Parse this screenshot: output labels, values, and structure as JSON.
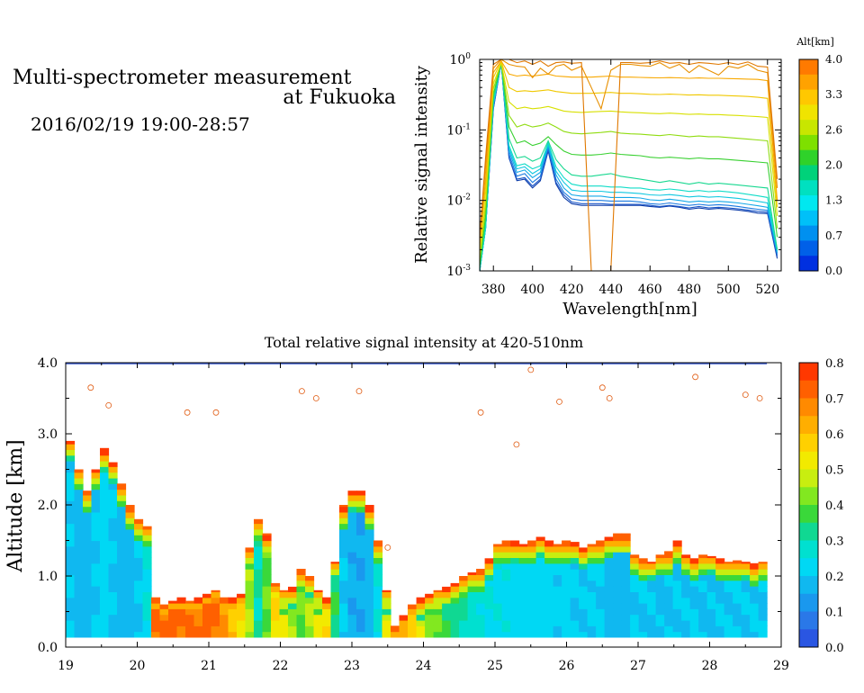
{
  "header": {
    "title_line1": "Multi-spectrometer measurement",
    "title_line2": "at Fukuoka",
    "datetime": "2016/02/19 19:00-28:57"
  },
  "chart_data": [
    {
      "type": "line",
      "xlabel": "Wavelength[nm]",
      "ylabel": "Relative signal intensity",
      "yscale": "log",
      "xlim": [
        373,
        527
      ],
      "ylim": [
        0.001,
        1
      ],
      "x_ticks": [
        380,
        400,
        420,
        440,
        460,
        480,
        500,
        520
      ],
      "y_ticks": [
        {
          "base": "10",
          "exp": "-3",
          "v": 0.001
        },
        {
          "base": "10",
          "exp": "-2",
          "v": 0.01
        },
        {
          "base": "10",
          "exp": "-1",
          "v": 0.1
        },
        {
          "base": "10",
          "exp": "0",
          "v": 1
        }
      ],
      "colorbar": {
        "title": "Alt[km]",
        "ticks": [
          "4.0",
          "3.3",
          "2.6",
          "2.0",
          "1.3",
          "0.7",
          "0.0"
        ],
        "colors": [
          "#ff7a00",
          "#ffa200",
          "#ffc800",
          "#f0e400",
          "#c8e600",
          "#7ee000",
          "#2fd22a",
          "#00d27a",
          "#00e0c0",
          "#00e8f0",
          "#00c0f8",
          "#0090f0",
          "#0060e8",
          "#0030e0"
        ]
      },
      "x": [
        373,
        376,
        380,
        384,
        388,
        392,
        396,
        400,
        404,
        408,
        412,
        416,
        420,
        425,
        430,
        435,
        440,
        445,
        450,
        455,
        460,
        465,
        470,
        475,
        480,
        485,
        490,
        495,
        500,
        505,
        510,
        515,
        520,
        525
      ],
      "series": [
        {
          "color": "#0a3aa8",
          "values": [
            0.0008,
            0.004,
            0.2,
            0.9,
            0.04,
            0.019,
            0.02,
            0.015,
            0.019,
            0.05,
            0.017,
            0.011,
            0.009,
            0.0085,
            0.0085,
            0.0085,
            0.0085,
            0.0085,
            0.0085,
            0.0085,
            0.0082,
            0.008,
            0.0083,
            0.008,
            0.0075,
            0.0078,
            0.0075,
            0.0077,
            0.0075,
            0.0073,
            0.007,
            0.0066,
            0.0065,
            0.0015
          ]
        },
        {
          "color": "#1a56c8",
          "values": [
            0.0008,
            0.004,
            0.2,
            0.9,
            0.04,
            0.02,
            0.021,
            0.016,
            0.02,
            0.052,
            0.018,
            0.012,
            0.0095,
            0.009,
            0.009,
            0.009,
            0.0088,
            0.0088,
            0.0088,
            0.0088,
            0.0085,
            0.0082,
            0.0085,
            0.0082,
            0.0078,
            0.0082,
            0.0078,
            0.008,
            0.0078,
            0.0076,
            0.0073,
            0.007,
            0.0068,
            0.0016
          ]
        },
        {
          "color": "#1a7ae0",
          "values": [
            0.0009,
            0.004,
            0.22,
            0.9,
            0.045,
            0.022,
            0.024,
            0.018,
            0.022,
            0.056,
            0.02,
            0.013,
            0.0105,
            0.01,
            0.01,
            0.01,
            0.0098,
            0.0098,
            0.0098,
            0.0095,
            0.009,
            0.0088,
            0.0092,
            0.0088,
            0.0085,
            0.0088,
            0.0085,
            0.0087,
            0.0085,
            0.0082,
            0.0078,
            0.0075,
            0.0072,
            0.0017
          ]
        },
        {
          "color": "#14a8e8",
          "values": [
            0.0009,
            0.004,
            0.22,
            0.9,
            0.05,
            0.025,
            0.027,
            0.021,
            0.025,
            0.06,
            0.023,
            0.015,
            0.012,
            0.0115,
            0.0115,
            0.0115,
            0.011,
            0.011,
            0.011,
            0.0108,
            0.0102,
            0.01,
            0.0104,
            0.01,
            0.0095,
            0.0098,
            0.0095,
            0.0097,
            0.0095,
            0.0092,
            0.0088,
            0.0084,
            0.008,
            0.0018
          ]
        },
        {
          "color": "#10c8e0",
          "values": [
            0.001,
            0.004,
            0.24,
            0.9,
            0.055,
            0.028,
            0.03,
            0.024,
            0.028,
            0.063,
            0.026,
            0.018,
            0.014,
            0.0135,
            0.0135,
            0.0135,
            0.013,
            0.013,
            0.0128,
            0.0125,
            0.012,
            0.0118,
            0.0121,
            0.0117,
            0.0112,
            0.0115,
            0.0111,
            0.0113,
            0.011,
            0.0107,
            0.0102,
            0.0097,
            0.0092,
            0.0019
          ]
        },
        {
          "color": "#10dcc8",
          "values": [
            0.001,
            0.004,
            0.25,
            0.9,
            0.06,
            0.031,
            0.033,
            0.028,
            0.031,
            0.066,
            0.03,
            0.021,
            0.017,
            0.016,
            0.016,
            0.016,
            0.0155,
            0.0155,
            0.015,
            0.015,
            0.0142,
            0.014,
            0.0145,
            0.014,
            0.0134,
            0.0138,
            0.0133,
            0.0136,
            0.0132,
            0.0128,
            0.0122,
            0.0116,
            0.011,
            0.002
          ]
        },
        {
          "color": "#18d890",
          "values": [
            0.0011,
            0.005,
            0.28,
            0.9,
            0.075,
            0.04,
            0.042,
            0.036,
            0.04,
            0.07,
            0.038,
            0.028,
            0.023,
            0.022,
            0.022,
            0.023,
            0.024,
            0.022,
            0.021,
            0.02,
            0.019,
            0.018,
            0.019,
            0.018,
            0.017,
            0.018,
            0.017,
            0.0175,
            0.017,
            0.0165,
            0.016,
            0.0155,
            0.015,
            0.002
          ]
        },
        {
          "color": "#38d030",
          "values": [
            0.0012,
            0.006,
            0.32,
            0.9,
            0.11,
            0.065,
            0.07,
            0.06,
            0.065,
            0.08,
            0.062,
            0.05,
            0.045,
            0.044,
            0.044,
            0.045,
            0.047,
            0.045,
            0.044,
            0.043,
            0.041,
            0.04,
            0.041,
            0.04,
            0.039,
            0.04,
            0.039,
            0.039,
            0.038,
            0.037,
            0.036,
            0.035,
            0.034,
            0.003
          ]
        },
        {
          "color": "#90dc10",
          "values": [
            0.0014,
            0.008,
            0.38,
            0.9,
            0.16,
            0.11,
            0.12,
            0.11,
            0.115,
            0.125,
            0.11,
            0.095,
            0.09,
            0.088,
            0.09,
            0.092,
            0.095,
            0.09,
            0.088,
            0.087,
            0.085,
            0.083,
            0.086,
            0.083,
            0.08,
            0.082,
            0.08,
            0.08,
            0.078,
            0.076,
            0.074,
            0.072,
            0.07,
            0.004
          ]
        },
        {
          "color": "#d8e000",
          "values": [
            0.0016,
            0.01,
            0.45,
            0.9,
            0.25,
            0.2,
            0.21,
            0.2,
            0.205,
            0.215,
            0.2,
            0.185,
            0.18,
            0.177,
            0.18,
            0.183,
            0.185,
            0.18,
            0.177,
            0.175,
            0.172,
            0.17,
            0.173,
            0.17,
            0.166,
            0.168,
            0.165,
            0.165,
            0.162,
            0.16,
            0.157,
            0.154,
            0.15,
            0.006
          ]
        },
        {
          "color": "#f0c800",
          "values": [
            0.002,
            0.015,
            0.55,
            0.95,
            0.4,
            0.35,
            0.36,
            0.35,
            0.36,
            0.37,
            0.35,
            0.34,
            0.33,
            0.33,
            0.33,
            0.335,
            0.34,
            0.33,
            0.33,
            0.325,
            0.32,
            0.318,
            0.322,
            0.318,
            0.312,
            0.315,
            0.31,
            0.31,
            0.306,
            0.302,
            0.298,
            0.29,
            0.28,
            0.008
          ]
        },
        {
          "color": "#f8a800",
          "values": [
            0.0025,
            0.02,
            0.65,
            0.95,
            0.62,
            0.58,
            0.6,
            0.58,
            0.6,
            0.62,
            0.58,
            0.57,
            0.56,
            0.56,
            0.56,
            0.57,
            0.58,
            0.56,
            0.56,
            0.555,
            0.55,
            0.548,
            0.552,
            0.548,
            0.54,
            0.545,
            0.54,
            0.54,
            0.535,
            0.53,
            0.525,
            0.52,
            0.5,
            0.01
          ]
        },
        {
          "color": "#e89000",
          "values": [
            0.003,
            0.03,
            0.75,
            1.0,
            0.85,
            0.8,
            0.78,
            0.55,
            0.75,
            0.62,
            0.8,
            0.85,
            0.7,
            0.8,
            0.4,
            0.2,
            0.7,
            0.85,
            0.85,
            0.82,
            0.8,
            0.9,
            0.75,
            0.85,
            0.65,
            0.82,
            0.7,
            0.6,
            0.8,
            0.75,
            0.85,
            0.7,
            0.65,
            0.015
          ]
        },
        {
          "color": "#e07800",
          "values": [
            0.003,
            0.04,
            0.85,
            1.0,
            1.0,
            0.9,
            0.95,
            0.85,
            0.95,
            0.8,
            0.9,
            0.92,
            0.88,
            0.9,
            0.0009,
            0.0009,
            0.0009,
            0.9,
            0.9,
            0.88,
            0.9,
            0.95,
            0.88,
            0.9,
            0.85,
            0.9,
            0.88,
            0.85,
            0.9,
            0.85,
            0.92,
            0.8,
            0.78,
            0.02
          ]
        }
      ]
    },
    {
      "type": "heatmap",
      "title": "Total relative signal intensity at 420-510nm",
      "ylabel": "Altitude [km]",
      "xlim": [
        19,
        29
      ],
      "ylim": [
        0,
        4
      ],
      "x_ticks": [
        "19",
        "20",
        "21",
        "22",
        "23",
        "24",
        "25",
        "26",
        "27",
        "28",
        "29"
      ],
      "y_ticks": [
        "0.0",
        "1.0",
        "2.0",
        "3.0",
        "4.0"
      ],
      "colorbar": {
        "ticks": [
          "0.8",
          "0.7",
          "0.6",
          "0.5",
          "0.4",
          "0.3",
          "0.2",
          "0.1",
          "0.0"
        ],
        "colors": [
          "#ff3800",
          "#ff6000",
          "#ff8a00",
          "#ffae00",
          "#ffd000",
          "#f2ea00",
          "#c8ee10",
          "#82e820",
          "#3ad83a",
          "#10d892",
          "#00e0d0",
          "#00d8f4",
          "#10b8f0",
          "#1a98ee",
          "#2a78e8",
          "#2a56e2"
        ]
      },
      "layer_top_km": [
        2.9,
        2.5,
        2.2,
        2.5,
        2.8,
        2.6,
        2.3,
        2.0,
        1.8,
        1.7,
        0.7,
        0.6,
        0.65,
        0.7,
        0.65,
        0.7,
        0.75,
        0.8,
        0.7,
        0.7,
        0.75,
        1.4,
        1.8,
        1.6,
        0.9,
        0.8,
        0.85,
        1.1,
        1.0,
        0.8,
        0.7,
        1.2,
        2.0,
        2.2,
        2.2,
        2.0,
        1.5,
        0.8,
        0.3,
        0.45,
        0.6,
        0.7,
        0.75,
        0.8,
        0.85,
        0.9,
        1.0,
        1.05,
        1.1,
        1.25,
        1.45,
        1.5,
        1.5,
        1.45,
        1.5,
        1.55,
        1.5,
        1.45,
        1.5,
        1.48,
        1.4,
        1.45,
        1.5,
        1.55,
        1.6,
        1.6,
        1.3,
        1.25,
        1.2,
        1.3,
        1.35,
        1.5,
        1.3,
        1.25,
        1.3,
        1.28,
        1.25,
        1.2,
        1.22,
        1.2,
        1.18,
        1.2
      ],
      "layer_peak": [
        0.2,
        0.18,
        0.18,
        0.2,
        0.22,
        0.2,
        0.18,
        0.18,
        0.2,
        0.25,
        0.7,
        0.7,
        0.72,
        0.7,
        0.7,
        0.7,
        0.72,
        0.7,
        0.65,
        0.6,
        0.55,
        0.45,
        0.3,
        0.4,
        0.55,
        0.5,
        0.45,
        0.4,
        0.45,
        0.5,
        0.55,
        0.35,
        0.2,
        0.16,
        0.15,
        0.18,
        0.25,
        0.5,
        0.7,
        0.62,
        0.55,
        0.5,
        0.45,
        0.4,
        0.35,
        0.32,
        0.3,
        0.28,
        0.26,
        0.25,
        0.24,
        0.24,
        0.23,
        0.23,
        0.22,
        0.22,
        0.22,
        0.21,
        0.22,
        0.2,
        0.2,
        0.21,
        0.2,
        0.18,
        0.18,
        0.18,
        0.2,
        0.2,
        0.2,
        0.19,
        0.19,
        0.2,
        0.2,
        0.2,
        0.19,
        0.19,
        0.2,
        0.2,
        0.2,
        0.2,
        0.2,
        0.2
      ]
    }
  ]
}
